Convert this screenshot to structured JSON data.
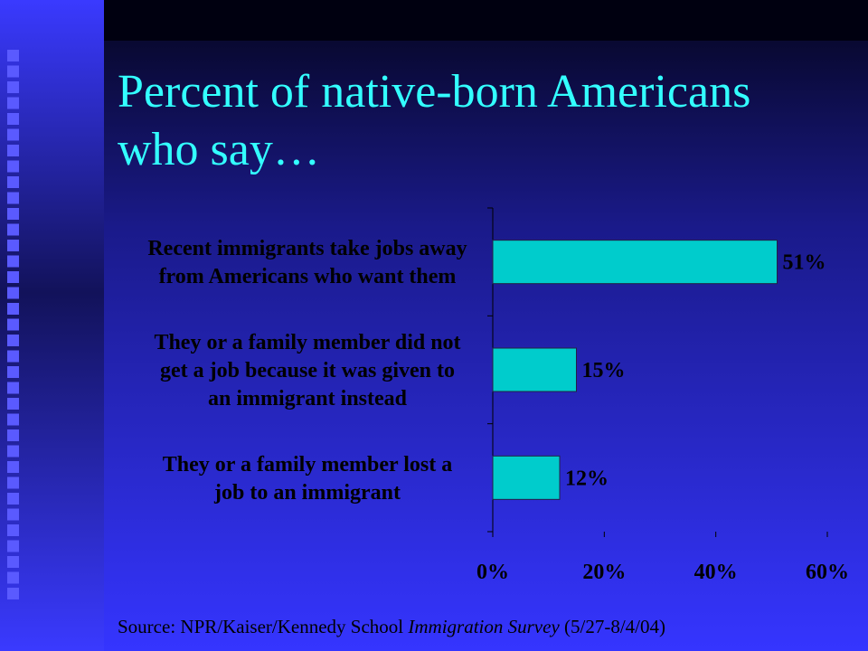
{
  "chart_data": {
    "type": "bar",
    "orientation": "horizontal",
    "title": [
      "Percent of native-born Americans",
      "who say…"
    ],
    "categories": [
      [
        "Recent immigrants take jobs away",
        "from Americans who want them"
      ],
      [
        "They or a family member did not",
        "get a job because it was given to",
        "an immigrant instead"
      ],
      [
        "They or a family member lost a",
        "job to an immigrant"
      ]
    ],
    "values": [
      51,
      15,
      12
    ],
    "value_labels": [
      "51%",
      "15%",
      "12%"
    ],
    "color": "#00cccc",
    "xlim": [
      0,
      60
    ],
    "xticks": [
      {
        "value": 0,
        "label": "0%"
      },
      {
        "value": 20,
        "label": "20%"
      },
      {
        "value": 40,
        "label": "40%"
      },
      {
        "value": 60,
        "label": "60%"
      }
    ],
    "source": [
      "Source: NPR/Kaiser/Kennedy School",
      "Immigration Survey",
      "(5/27-8/4/04)"
    ]
  }
}
